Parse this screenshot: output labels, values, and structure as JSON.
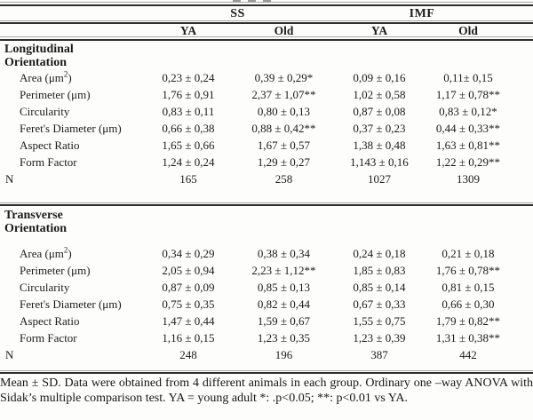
{
  "colors": {
    "background": "#fdfdfc",
    "rule_dark": "#2e2e2e",
    "rule_light": "#a8a8a8",
    "text": "#1b1b1b"
  },
  "table": {
    "group_headers": [
      "SS",
      "IMF"
    ],
    "sub_headers": [
      "YA",
      "Old",
      "YA",
      "Old"
    ],
    "sections": [
      {
        "title": [
          "Longitudinal",
          "Orientation"
        ],
        "rows": [
          {
            "label": "Area (μm",
            "sup": "2",
            "suffix": ")",
            "values": [
              "0,23 ± 0,24",
              "0,39 ± 0,29*",
              "0,09 ± 0,16",
              "0,11± 0,15"
            ]
          },
          {
            "label": "Perimeter (μm)",
            "values": [
              "1,76 ± 0,91",
              "2,37 ± 1,07**",
              "1,02 ± 0,58",
              "1,17 ± 0,78**"
            ]
          },
          {
            "label": "Circularity",
            "values": [
              "0,83 ± 0,11",
              "0,80 ± 0,13",
              "0,87 ± 0,08",
              "0,83 ± 0,12*"
            ]
          },
          {
            "label": "Feret's Diameter (μm)",
            "values": [
              "0,66 ± 0,38",
              "0,88 ± 0,42**",
              "0,37 ± 0,23",
              "0,44 ± 0,33**"
            ]
          },
          {
            "label": "Aspect Ratio",
            "values": [
              "1,65 ± 0,66",
              "1,67 ± 0,57",
              "1,38 ± 0,48",
              "1,63 ± 0,81**"
            ]
          },
          {
            "label": "Form Factor",
            "values": [
              "1,24 ± 0,24",
              "1,29 ± 0,27",
              "1,143 ± 0,16",
              "1,22 ± 0,29**"
            ]
          },
          {
            "label": "N",
            "flush": true,
            "values": [
              "165",
              "258",
              "1027",
              "1309"
            ]
          }
        ]
      },
      {
        "title": [
          "Transverse",
          "Orientation"
        ],
        "rows": [
          {
            "label": "Area (μm",
            "sup": "2",
            "suffix": ")",
            "values": [
              "0,34 ± 0,29",
              "0,38 ± 0,34",
              "0,24 ± 0,18",
              "0,21 ± 0,18"
            ]
          },
          {
            "label": "Perimeter (μm)",
            "values": [
              "2,05 ± 0,94",
              "2,23 ± 1,12**",
              "1,85 ± 0,83",
              "1,76 ± 0,78**"
            ]
          },
          {
            "label": "Circularity",
            "values": [
              "0,87 ± 0,09",
              "0,85 ± 0,13",
              "0,85 ± 0,14",
              "0,81 ± 0,15"
            ]
          },
          {
            "label": "Feret's Diameter (μm)",
            "values": [
              "0,75 ± 0,35",
              "0,82 ± 0,44",
              "0,67 ± 0,33",
              "0,66 ± 0,30"
            ]
          },
          {
            "label": "Aspect Ratio",
            "values": [
              "1,47 ± 0,44",
              "1,59 ± 0,67",
              "1,55 ± 0,75",
              "1,79 ± 0,82**"
            ]
          },
          {
            "label": "Form Factor",
            "values": [
              "1,16 ± 0,15",
              "1,23 ± 0,35",
              "1,23 ± 0,39",
              "1,31 ± 0,38**"
            ]
          },
          {
            "label": "N",
            "flush": true,
            "values": [
              "248",
              "196",
              "387",
              "442"
            ]
          }
        ]
      }
    ],
    "footnote": "Mean ± SD. Data were obtained from 4 different animals in each group. Ordinary one –way ANOVA with Sidak’s multiple comparison test. YA = young adult *: .p<0.05; **: p<0.01 vs YA."
  }
}
